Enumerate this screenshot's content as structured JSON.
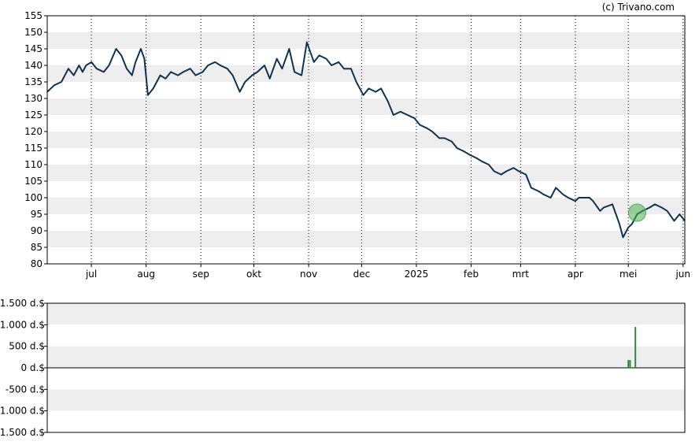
{
  "copyright": "(c) Trivano.com",
  "colors": {
    "band": "#eeeeee",
    "frame": "#000000",
    "price_line": "#0f3350",
    "marker_fill": "#4caf50",
    "volume_bar": "#2e8b3d"
  },
  "chart_data": [
    {
      "type": "line",
      "title": "",
      "xlabel": "",
      "ylabel": "",
      "ylim": [
        80,
        155
      ],
      "y_ticks": [
        "80",
        "85",
        "90",
        "95",
        "100",
        "105",
        "110",
        "115",
        "120",
        "125",
        "130",
        "135",
        "140",
        "145",
        "150",
        "155"
      ],
      "x_tick_labels": [
        "jul",
        "aug",
        "sep",
        "okt",
        "nov",
        "dec",
        "2025",
        "feb",
        "mrt",
        "apr",
        "mei",
        "jun"
      ],
      "x_tick_dates": [
        "2024-07-01",
        "2024-08-01",
        "2024-09-01",
        "2024-10-01",
        "2024-11-01",
        "2024-12-01",
        "2025-01-01",
        "2025-02-01",
        "2025-03-01",
        "2025-04-01",
        "2025-05-01",
        "2025-06-01"
      ],
      "x_range": [
        "2024-06-06",
        "2025-06-02"
      ],
      "grid": "vertical dotted lines at month ticks, alternating horizontal bands",
      "series": [
        {
          "x": [
            "2024-06-06",
            "2024-06-10",
            "2024-06-14",
            "2024-06-18",
            "2024-06-21",
            "2024-06-24",
            "2024-06-26",
            "2024-06-28",
            "2024-07-01",
            "2024-07-04",
            "2024-07-08",
            "2024-07-11",
            "2024-07-15",
            "2024-07-18",
            "2024-07-21",
            "2024-07-24",
            "2024-07-26",
            "2024-07-29",
            "2024-07-31",
            "2024-08-02",
            "2024-08-05",
            "2024-08-07",
            "2024-08-09",
            "2024-08-12",
            "2024-08-15",
            "2024-08-19",
            "2024-08-22",
            "2024-08-26",
            "2024-08-29",
            "2024-09-02",
            "2024-09-05",
            "2024-09-09",
            "2024-09-12",
            "2024-09-16",
            "2024-09-19",
            "2024-09-23",
            "2024-09-26",
            "2024-09-30",
            "2024-10-03",
            "2024-10-07",
            "2024-10-10",
            "2024-10-14",
            "2024-10-17",
            "2024-10-21",
            "2024-10-24",
            "2024-10-28",
            "2024-10-31",
            "2024-11-04",
            "2024-11-07",
            "2024-11-11",
            "2024-11-14",
            "2024-11-18",
            "2024-11-21",
            "2024-11-25",
            "2024-11-28",
            "2024-12-02",
            "2024-12-05",
            "2024-12-09",
            "2024-12-12",
            "2024-12-16",
            "2024-12-19",
            "2024-12-23",
            "2024-12-27",
            "2024-12-31",
            "2025-01-03",
            "2025-01-07",
            "2025-01-10",
            "2025-01-14",
            "2025-01-17",
            "2025-01-21",
            "2025-01-24",
            "2025-01-28",
            "2025-01-31",
            "2025-02-04",
            "2025-02-07",
            "2025-02-11",
            "2025-02-14",
            "2025-02-18",
            "2025-02-21",
            "2025-02-25",
            "2025-02-28",
            "2025-03-04",
            "2025-03-07",
            "2025-03-11",
            "2025-03-14",
            "2025-03-18",
            "2025-03-21",
            "2025-03-25",
            "2025-03-28",
            "2025-04-01",
            "2025-04-03",
            "2025-04-07",
            "2025-04-09",
            "2025-04-11",
            "2025-04-15",
            "2025-04-17",
            "2025-04-22",
            "2025-04-24",
            "2025-04-26",
            "2025-04-28",
            "2025-05-01",
            "2025-05-03",
            "2025-05-06",
            "2025-05-09",
            "2025-05-13",
            "2025-05-16",
            "2025-05-20",
            "2025-05-23",
            "2025-05-27",
            "2025-05-30",
            "2025-06-02"
          ],
          "y": [
            132,
            134,
            135,
            139,
            137,
            140,
            138,
            140,
            141,
            139,
            138,
            140,
            145,
            143,
            139,
            137,
            141,
            145,
            142,
            131,
            133,
            135,
            137,
            136,
            138,
            137,
            138,
            139,
            137,
            138,
            140,
            141,
            140,
            139,
            137,
            132,
            135,
            137,
            138,
            140,
            136,
            142,
            139,
            145,
            138,
            137,
            147,
            141,
            143,
            142,
            140,
            141,
            139,
            139,
            135,
            131,
            133,
            132,
            133,
            129,
            125,
            126,
            125,
            124,
            122,
            121,
            120,
            118,
            118,
            117,
            115,
            114,
            113,
            112,
            111,
            110,
            108,
            107,
            108,
            109,
            108,
            107,
            103,
            102,
            101,
            100,
            103,
            101,
            100,
            99,
            100,
            100,
            100,
            99,
            96,
            97,
            98,
            95,
            92,
            88,
            91,
            92,
            95,
            96,
            97,
            98,
            97,
            96,
            93,
            95,
            93
          ]
        }
      ]
    },
    {
      "type": "bar",
      "title": "",
      "xlabel": "",
      "ylabel": "",
      "ylim": [
        -1500,
        1500
      ],
      "y_ticks": [
        "-1.500 d.$",
        "-1.000 d.$",
        "-500 d.$",
        "0 d.$",
        "500 d.$",
        "1.000 d.$",
        "1.500 d.$"
      ],
      "series": [
        {
          "x": [
            "2025-05-01",
            "2025-05-02",
            "2025-05-05"
          ],
          "values": [
            180,
            180,
            950
          ]
        }
      ]
    }
  ]
}
